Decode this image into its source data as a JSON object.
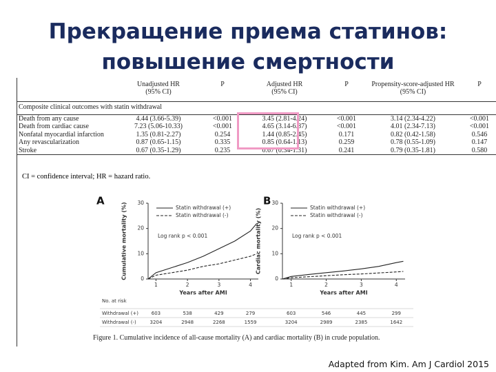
{
  "title": [
    "Прекращение приема статинов:",
    "повышение смертности"
  ],
  "table": {
    "caption": "Composite clinical outcomes with statin withdrawal",
    "header": [
      "",
      "Unadjusted HR\n(95% CI)",
      "P",
      "Adjusted HR\n(95% CI)",
      "P",
      "Propensity-score-adjusted HR\n(95% CI)",
      "P"
    ],
    "rows": [
      [
        "Death from any cause",
        "4.44 (3.66-5.39)",
        "<0.001",
        "3.45 (2.81-4.24)",
        "<0.001",
        "3.14 (2.34-4.22)",
        "<0.001"
      ],
      [
        "Death from cardiac cause",
        "7.23 (5.06-10.33)",
        "<0.001",
        "4.65 (3.14-6.87)",
        "<0.001",
        "4.01 (2.34-7.13)",
        "<0.001"
      ],
      [
        "Nonfatal myocardial infarction",
        "1.35 (0.81-2.27)",
        "0.254",
        "1.44 (0.85-2.45)",
        "0.171",
        "0.82 (0.42-1.58)",
        "0.546"
      ],
      [
        "Any revascularization",
        "0.87 (0.65-1.15)",
        "0.335",
        "0.85 (0.64-1.13)",
        "0.259",
        "0.78 (0.55-1.09)",
        "0.147"
      ],
      [
        "Stroke",
        "0.67 (0.35-1.29)",
        "0.235",
        "0.67 (0.34-1.31)",
        "0.241",
        "0.79 (0.35-1.81)",
        "0.580"
      ]
    ],
    "footnote": "CI = confidence interval; HR = hazard ratio."
  },
  "chart_data": [
    {
      "type": "line",
      "panel": "A",
      "ylabel": "Cumulative mortality (%)",
      "xlabel": "Years after AMI",
      "annotation": "Log rank p < 0.001",
      "x": [
        0.75,
        1,
        1.5,
        2,
        2.5,
        3,
        3.5,
        4,
        4.2
      ],
      "series": [
        {
          "name": "Statin withdrawal (+)",
          "color": "#222222",
          "line_style": "solid",
          "values": [
            0,
            2.5,
            4.5,
            6.5,
            9,
            12,
            15,
            19,
            22
          ]
        },
        {
          "name": "Statin withdrawal (-)",
          "color": "#222222",
          "line_style": "dashed",
          "values": [
            0,
            1.5,
            2.5,
            3.5,
            5,
            6,
            7.5,
            9,
            10
          ]
        }
      ],
      "xlim": [
        0.75,
        4.25
      ],
      "xticks": [
        1,
        2,
        3,
        4
      ],
      "ylim": [
        0,
        30
      ],
      "yticks": [
        0,
        10,
        20,
        30
      ],
      "at_risk": [
        [
          603,
          538,
          429,
          279
        ],
        [
          3204,
          2948,
          2268,
          1559
        ]
      ]
    },
    {
      "type": "line",
      "panel": "B",
      "ylabel": "Cardiac mortality (%)",
      "xlabel": "Years after AMI",
      "annotation": "Log rank p < 0.001",
      "x": [
        0.75,
        1,
        1.5,
        2,
        2.5,
        3,
        3.5,
        4,
        4.2
      ],
      "series": [
        {
          "name": "Statin withdrawal (+)",
          "color": "#222222",
          "line_style": "solid",
          "values": [
            0,
            1,
            1.8,
            2.5,
            3.2,
            4,
            5,
            6.5,
            7
          ]
        },
        {
          "name": "Statin withdrawal (-)",
          "color": "#222222",
          "line_style": "dashed",
          "values": [
            0,
            0.5,
            0.9,
            1.3,
            1.7,
            2,
            2.4,
            2.8,
            3
          ]
        }
      ],
      "xlim": [
        0.75,
        4.25
      ],
      "xticks": [
        1,
        2,
        3,
        4
      ],
      "ylim": [
        0,
        30
      ],
      "yticks": [
        0,
        10,
        20,
        30
      ],
      "at_risk": [
        [
          603,
          546,
          445,
          299
        ],
        [
          3204,
          2989,
          2385,
          1642
        ]
      ]
    }
  ],
  "at_risk": {
    "title": "No. at risk",
    "row_labels": [
      "Withdrawal (+)",
      "Withdrawal (-)"
    ]
  },
  "figure_caption": "Figure 1. Cumulative incidence of all-cause mortality (A) and cardiac mortality (B) in crude population.",
  "source": "Adapted from Kim. Am J Cardiol 2015"
}
